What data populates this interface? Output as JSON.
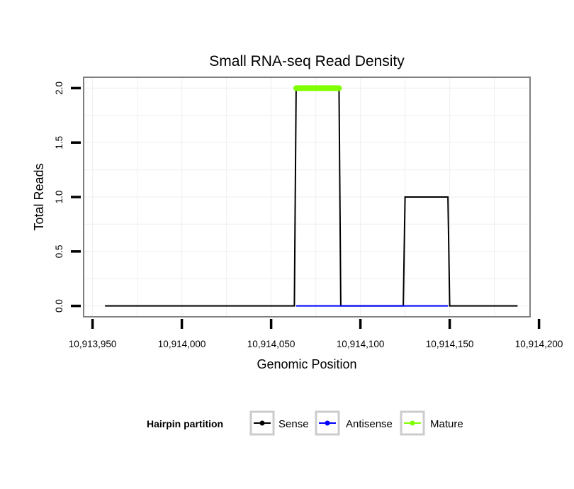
{
  "chart_data": {
    "type": "line",
    "title": "Small RNA-seq Read Density",
    "xlabel": "Genomic Position",
    "ylabel": "Total Reads",
    "xlim": [
      10913945,
      10914195
    ],
    "ylim": [
      -0.1,
      2.1
    ],
    "x_ticks": [
      10913950,
      10914000,
      10914050,
      10914100,
      10914150,
      10914200
    ],
    "x_tick_labels": [
      "10,913,950",
      "10,914,000",
      "10,914,050",
      "10,914,100",
      "10,914,150",
      "10,914,200"
    ],
    "y_ticks": [
      0,
      0.5,
      1,
      1.5,
      2
    ],
    "y_tick_labels": [
      "0.0",
      "0.5",
      "1.0",
      "1.5",
      "2.0"
    ],
    "grid": true,
    "legend": {
      "title": "Hairpin partition",
      "position": "bottom",
      "entries": [
        "Sense",
        "Antisense",
        "Mature"
      ]
    },
    "series": [
      {
        "name": "Sense",
        "color": "#000000",
        "x": [
          10913957,
          10914063,
          10914064,
          10914088,
          10914089,
          10914124,
          10914125,
          10914149,
          10914150,
          10914188
        ],
        "values": [
          0,
          0,
          2,
          2,
          0,
          0,
          1,
          1,
          0,
          0
        ]
      },
      {
        "name": "Antisense",
        "color": "#0000ff",
        "x": [
          10914064,
          10914088,
          10914125,
          10914149
        ],
        "values": [
          0,
          0,
          0,
          0
        ]
      },
      {
        "name": "Mature",
        "color": "#7fff00",
        "x": [
          10914064,
          10914088
        ],
        "values": [
          2,
          2
        ]
      }
    ]
  }
}
